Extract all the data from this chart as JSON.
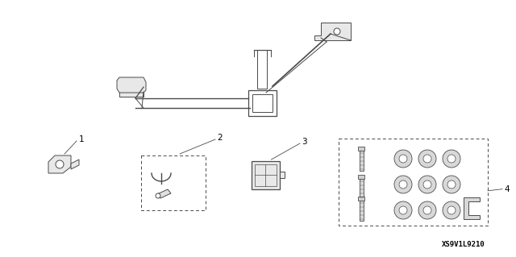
{
  "background_color": "#ffffff",
  "line_color": "#4a4a4a",
  "fig_width": 6.4,
  "fig_height": 3.19,
  "part_number_text": "XS9V1L9210",
  "label_fontsize": 7.5,
  "part_number_fontsize": 6.5,
  "label_color": "#000000",
  "lw": 0.7
}
